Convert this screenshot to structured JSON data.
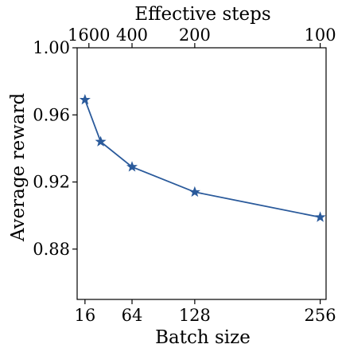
{
  "chart_data": {
    "type": "line",
    "xlabel": "Batch size",
    "ylabel": "Average reward",
    "top_xlabel": "Effective steps",
    "xlim": [
      8,
      262
    ],
    "ylim": [
      0.85,
      1.0
    ],
    "x_ticks": [
      16,
      64,
      128,
      256
    ],
    "x_tick_labels": [
      "16",
      "64",
      "128",
      "256"
    ],
    "top_x_ticks": [
      {
        "x": 20,
        "label": "1600"
      },
      {
        "x": 64,
        "label": "400"
      },
      {
        "x": 128,
        "label": "200"
      },
      {
        "x": 256,
        "label": "100"
      }
    ],
    "y_ticks": [
      1.0,
      0.96,
      0.92,
      0.88
    ],
    "y_tick_labels": [
      "1.00",
      "0.96",
      "0.92",
      "0.88"
    ],
    "series": [
      {
        "x": [
          16,
          32,
          64,
          128,
          256
        ],
        "y": [
          0.969,
          0.944,
          0.929,
          0.914,
          0.899
        ],
        "color": "#2a5a9b",
        "marker": "star"
      }
    ],
    "grid": false
  }
}
